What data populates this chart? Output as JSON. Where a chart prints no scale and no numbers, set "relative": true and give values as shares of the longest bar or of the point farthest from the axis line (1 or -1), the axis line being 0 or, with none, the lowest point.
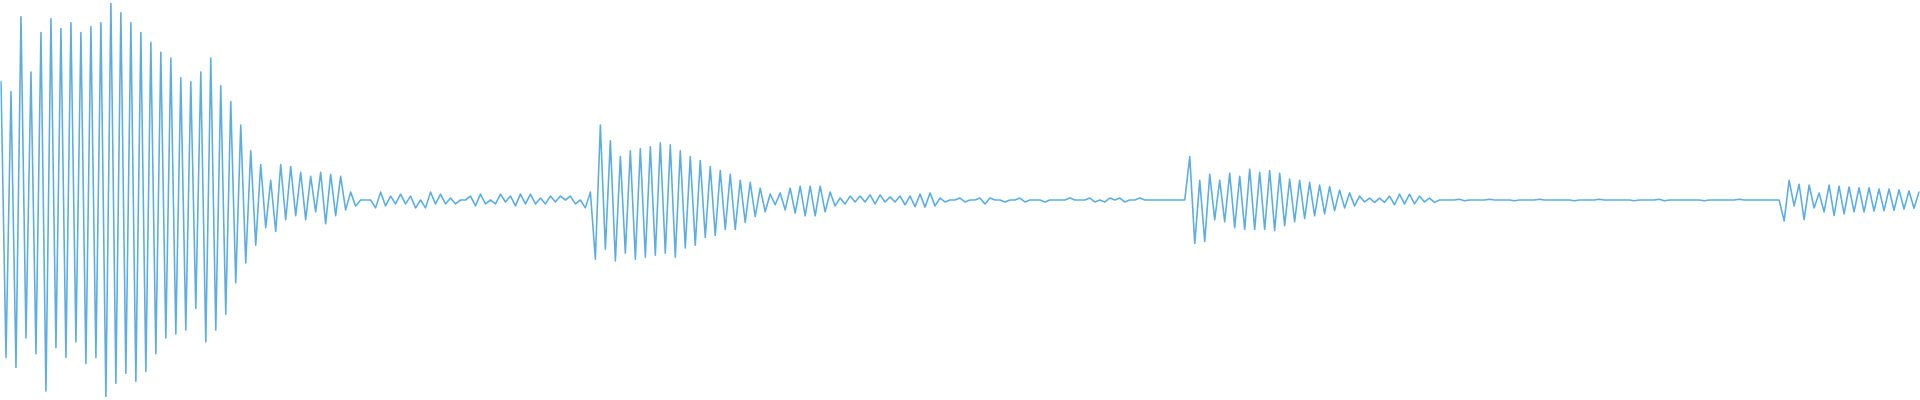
{
  "chart_data": {
    "type": "line",
    "relative": true,
    "color": "#5dade2",
    "categories": [
      null,
      null,
      null,
      null,
      null,
      null,
      null,
      null,
      null,
      null,
      null,
      null,
      null,
      null,
      null,
      null,
      null,
      null,
      null,
      null,
      null,
      null,
      null,
      null,
      null,
      null,
      null,
      null,
      null,
      null,
      null,
      null,
      null,
      null,
      null,
      null,
      null,
      null,
      null,
      null,
      null,
      null,
      null,
      null,
      null,
      null,
      null,
      null,
      null,
      null,
      null,
      null,
      null,
      null,
      null,
      null,
      null,
      null,
      null,
      null,
      null,
      null,
      null,
      null,
      null,
      null,
      null,
      null,
      null,
      null,
      null,
      null,
      null,
      null,
      null,
      null,
      null,
      null,
      null,
      null,
      null,
      null,
      null,
      null,
      null,
      null,
      null,
      null,
      null,
      null,
      null,
      null,
      null,
      null,
      null,
      null,
      null,
      null,
      null,
      null,
      null,
      null,
      null,
      null,
      null,
      null,
      null,
      null,
      null,
      null,
      null,
      null,
      null,
      null,
      null,
      null,
      null,
      null,
      null,
      null,
      null,
      null,
      null,
      null,
      null,
      null,
      null,
      null,
      null,
      null,
      null,
      null,
      null,
      null,
      null,
      null,
      null,
      null,
      null,
      null,
      null,
      null,
      null,
      null,
      null,
      null,
      null,
      null,
      null,
      null,
      null,
      null,
      null,
      null,
      null,
      null,
      null,
      null,
      null,
      null,
      null,
      null,
      null,
      null,
      null,
      null,
      null,
      null,
      null,
      null,
      null,
      null,
      null,
      null,
      null,
      null,
      null,
      null,
      null,
      null,
      null,
      null,
      null,
      null,
      null,
      null,
      null,
      null,
      null,
      null,
      null,
      null,
      null,
      null,
      null,
      null,
      null,
      null,
      null,
      null,
      null,
      null,
      null,
      null,
      null,
      null,
      null,
      null,
      null,
      null,
      null,
      null,
      null,
      null,
      null,
      null,
      null,
      null,
      null,
      null,
      null,
      null,
      null,
      null,
      null,
      null,
      null,
      null,
      null,
      null,
      null,
      null,
      null,
      null,
      null,
      null,
      null,
      null,
      null,
      null,
      null,
      null,
      null,
      null,
      null,
      null,
      null,
      null,
      null,
      null,
      null,
      null,
      null,
      null,
      null,
      null,
      null,
      null,
      null,
      null,
      null,
      null,
      null,
      null,
      null,
      null,
      null,
      null,
      null,
      null,
      null,
      null,
      null,
      null,
      null,
      null,
      null,
      null,
      null,
      null,
      null,
      null,
      null,
      null,
      null,
      null,
      null,
      null,
      null,
      null,
      null,
      null,
      null,
      null,
      null,
      null,
      null,
      null,
      null,
      null,
      null,
      null,
      null,
      null,
      null,
      null,
      null,
      null,
      null,
      null,
      null,
      null,
      null,
      null,
      null,
      null,
      null,
      null,
      null,
      null,
      null,
      null,
      null,
      null,
      null,
      null,
      null,
      null,
      null,
      null,
      null,
      null,
      null,
      null,
      null,
      null,
      null,
      null,
      null,
      null,
      null,
      null,
      null,
      null,
      null,
      null,
      null,
      null,
      null,
      null,
      null,
      null,
      null,
      null,
      null,
      null,
      null,
      null,
      null,
      null,
      null,
      null,
      null,
      null,
      null,
      null,
      null,
      null,
      null,
      null,
      null,
      null,
      null,
      null,
      null,
      null,
      null,
      null,
      null,
      null,
      null,
      null,
      null,
      null,
      null
    ],
    "values": [
      0.8,
      0.1,
      0.775,
      0.075,
      0.965,
      0.15,
      0.825,
      0.11,
      0.925,
      0.015,
      0.96,
      0.125,
      0.935,
      0.1,
      0.95,
      0.14,
      0.925,
      0.085,
      0.94,
      0.1,
      0.95,
      0,
      1,
      0.035,
      0.975,
      0.06,
      0.95,
      0.04,
      0.925,
      0.065,
      0.9,
      0.11,
      0.875,
      0.15,
      0.86,
      0.16,
      0.81,
      0.17,
      0.8,
      0.225,
      0.825,
      0.14,
      0.86,
      0.17,
      0.79,
      0.21,
      0.75,
      0.29,
      0.69,
      0.34,
      0.625,
      0.385,
      0.59,
      0.43,
      0.55,
      0.42,
      0.59,
      0.45,
      0.585,
      0.46,
      0.57,
      0.45,
      0.56,
      0.47,
      0.57,
      0.44,
      0.565,
      0.46,
      0.56,
      0.475,
      0.52,
      0.485,
      0.5,
      0.5,
      0.5,
      0.48,
      0.52,
      0.485,
      0.51,
      0.49,
      0.515,
      0.49,
      0.51,
      0.48,
      0.5,
      0.48,
      0.52,
      0.49,
      0.515,
      0.49,
      0.505,
      0.49,
      0.5,
      0.5,
      0.51,
      0.485,
      0.515,
      0.49,
      0.5,
      0.49,
      0.515,
      0.495,
      0.51,
      0.485,
      0.515,
      0.49,
      0.515,
      0.49,
      0.505,
      0.49,
      0.51,
      0.495,
      0.51,
      0.5,
      0.51,
      0.49,
      0.5,
      0.48,
      0.52,
      0.35,
      0.69,
      0.375,
      0.65,
      0.345,
      0.61,
      0.365,
      0.625,
      0.35,
      0.63,
      0.355,
      0.635,
      0.36,
      0.645,
      0.365,
      0.64,
      0.355,
      0.625,
      0.378,
      0.61,
      0.385,
      0.6,
      0.405,
      0.585,
      0.41,
      0.575,
      0.425,
      0.565,
      0.425,
      0.55,
      0.443,
      0.545,
      0.458,
      0.53,
      0.47,
      0.515,
      0.488,
      0.518,
      0.475,
      0.53,
      0.467,
      0.535,
      0.46,
      0.535,
      0.46,
      0.535,
      0.47,
      0.52,
      0.485,
      0.505,
      0.49,
      0.51,
      0.495,
      0.51,
      0.495,
      0.513,
      0.49,
      0.513,
      0.495,
      0.508,
      0.495,
      0.51,
      0.488,
      0.51,
      0.483,
      0.515,
      0.482,
      0.518,
      0.485,
      0.505,
      0.495,
      0.5,
      0.5,
      0.505,
      0.495,
      0.5,
      0.5,
      0.505,
      0.49,
      0.505,
      0.5,
      0.5,
      0.495,
      0.5,
      0.5,
      0.505,
      0.495,
      0.5,
      0.5,
      0.5,
      0.495,
      0.5,
      0.5,
      0.5,
      0.5,
      0.505,
      0.5,
      0.5,
      0.5,
      0.505,
      0.495,
      0.5,
      0.495,
      0.505,
      0.5,
      0.505,
      0.495,
      0.5,
      0.5,
      0.505,
      0.5,
      0.5,
      0.5,
      0.5,
      0.5,
      0.5,
      0.5,
      0.5,
      0.5,
      0.61,
      0.39,
      0.55,
      0.395,
      0.565,
      0.45,
      0.55,
      0.445,
      0.568,
      0.43,
      0.56,
      0.425,
      0.578,
      0.425,
      0.57,
      0.425,
      0.575,
      0.423,
      0.568,
      0.435,
      0.553,
      0.445,
      0.55,
      0.453,
      0.545,
      0.46,
      0.538,
      0.465,
      0.534,
      0.473,
      0.525,
      0.48,
      0.518,
      0.485,
      0.51,
      0.495,
      0.505,
      0.494,
      0.505,
      0.494,
      0.51,
      0.488,
      0.515,
      0.49,
      0.515,
      0.49,
      0.51,
      0.495,
      0.505,
      0.494,
      0.5,
      0.5,
      0.5,
      0.5,
      0.502,
      0.498,
      0.5,
      0.5,
      0.5,
      0.5,
      0.502,
      0.5,
      0.5,
      0.5,
      0.5,
      0.498,
      0.5,
      0.5,
      0.5,
      0.5,
      0.502,
      0.5,
      0.5,
      0.5,
      0.5,
      0.5,
      0.5,
      0.498,
      0.5,
      0.5,
      0.5,
      0.5,
      0.502,
      0.5,
      0.5,
      0.5,
      0.5,
      0.5,
      0.5,
      0.498,
      0.5,
      0.5,
      0.5,
      0.5,
      0.502,
      0.498,
      0.5,
      0.5,
      0.5,
      0.5,
      0.5,
      0.5,
      0.5,
      0.498,
      0.5,
      0.5,
      0.5,
      0.5,
      0.5,
      0.5,
      0.502,
      0.5,
      0.5,
      0.5,
      0.5,
      0.5,
      0.5,
      0.5,
      0.5,
      0.447,
      0.55,
      0.485,
      0.54,
      0.45,
      0.538,
      0.48,
      0.518,
      0.47,
      0.538,
      0.461,
      0.535,
      0.465,
      0.533,
      0.47,
      0.531,
      0.47,
      0.531,
      0.472,
      0.528,
      0.473,
      0.528,
      0.474,
      0.526,
      0.477,
      0.523,
      0.479,
      0.52
    ]
  }
}
